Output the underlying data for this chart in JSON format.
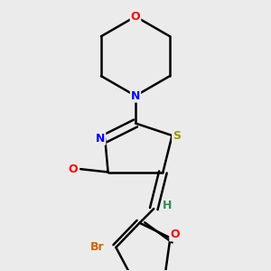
{
  "bg_color": "#ebebeb",
  "atom_colors": {
    "C": "#000000",
    "N": "#0000ff",
    "O": "#ff0000",
    "S": "#999900",
    "Br": "#cc6600",
    "H": "#2e8b57"
  },
  "bond_color": "#000000",
  "title": ""
}
